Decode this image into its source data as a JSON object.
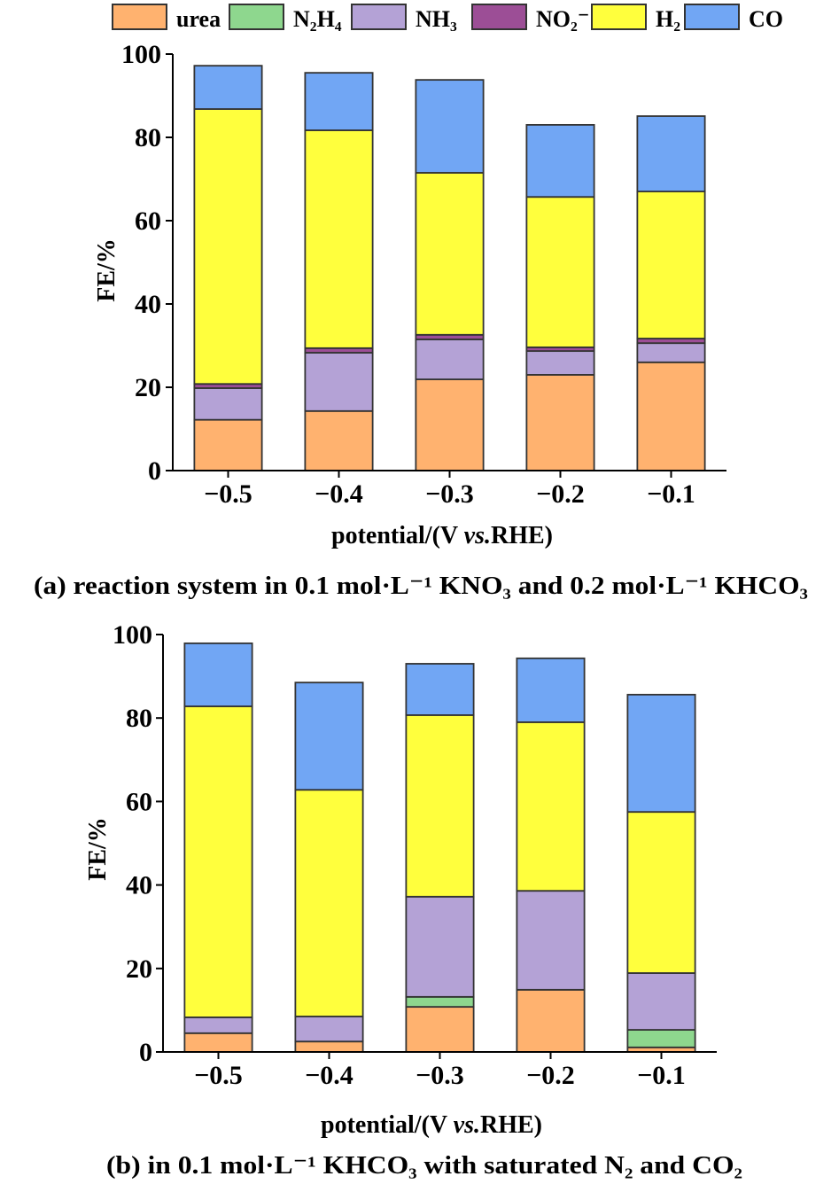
{
  "legend": {
    "items": [
      {
        "name": "urea",
        "color": "#FFB26F"
      },
      {
        "name": "N₂H₄",
        "color": "#8ED78E"
      },
      {
        "name": "NH₃",
        "color": "#B4A2D6"
      },
      {
        "name": "NO₂⁻",
        "color": "#9C4E96"
      },
      {
        "name": "H₂",
        "color": "#FFFF3D"
      },
      {
        "name": "CO",
        "color": "#71A6F4"
      }
    ]
  },
  "chart_data": [
    {
      "type": "bar",
      "stacked": true,
      "title": "(a) reaction system in 0.1 mol·L⁻¹ KNO₃ and 0.2 mol·L⁻¹ KHCO₃",
      "xlabel": [
        "potential/(V ",
        "vs.",
        "RHE)"
      ],
      "ylabel": "FE/%",
      "ylim": [
        0,
        100
      ],
      "yticks": [
        0,
        20,
        40,
        60,
        80,
        100
      ],
      "categories": [
        "−0.5",
        "−0.4",
        "−0.3",
        "−0.2",
        "−0.1"
      ],
      "series": [
        {
          "name": "urea",
          "values": [
            12.2,
            14.3,
            21.9,
            23.0,
            26.0
          ]
        },
        {
          "name": "N₂H₄",
          "values": [
            0,
            0,
            0,
            0,
            0
          ]
        },
        {
          "name": "NH₃",
          "values": [
            7.6,
            14.0,
            9.6,
            5.7,
            4.6
          ]
        },
        {
          "name": "NO₂⁻",
          "values": [
            1.0,
            1.1,
            1.1,
            0.9,
            1.1
          ]
        },
        {
          "name": "H₂",
          "values": [
            66.0,
            52.3,
            38.9,
            36.1,
            35.3
          ]
        },
        {
          "name": "CO",
          "values": [
            10.4,
            13.8,
            22.3,
            17.3,
            18.1
          ]
        }
      ]
    },
    {
      "type": "bar",
      "stacked": true,
      "title": "(b) in 0.1 mol·L⁻¹ KHCO₃ with saturated N₂ and CO₂",
      "xlabel": [
        "potential/(V ",
        "vs.",
        "RHE)"
      ],
      "ylabel": "FE/%",
      "ylim": [
        0,
        100
      ],
      "yticks": [
        0,
        20,
        40,
        60,
        80,
        100
      ],
      "categories": [
        "−0.5",
        "−0.4",
        "−0.3",
        "−0.2",
        "−0.1"
      ],
      "series": [
        {
          "name": "urea",
          "values": [
            4.5,
            2.5,
            10.8,
            14.9,
            1.1
          ]
        },
        {
          "name": "N₂H₄",
          "values": [
            0,
            0,
            2.4,
            0,
            4.2
          ]
        },
        {
          "name": "NH₃",
          "values": [
            3.8,
            6.0,
            24.0,
            23.7,
            13.6
          ]
        },
        {
          "name": "NO₂⁻",
          "values": [
            0,
            0,
            0,
            0,
            0
          ]
        },
        {
          "name": "H₂",
          "values": [
            74.5,
            54.3,
            43.5,
            40.4,
            38.6
          ]
        },
        {
          "name": "CO",
          "values": [
            15.1,
            25.7,
            12.3,
            15.3,
            28.1
          ]
        }
      ]
    }
  ]
}
